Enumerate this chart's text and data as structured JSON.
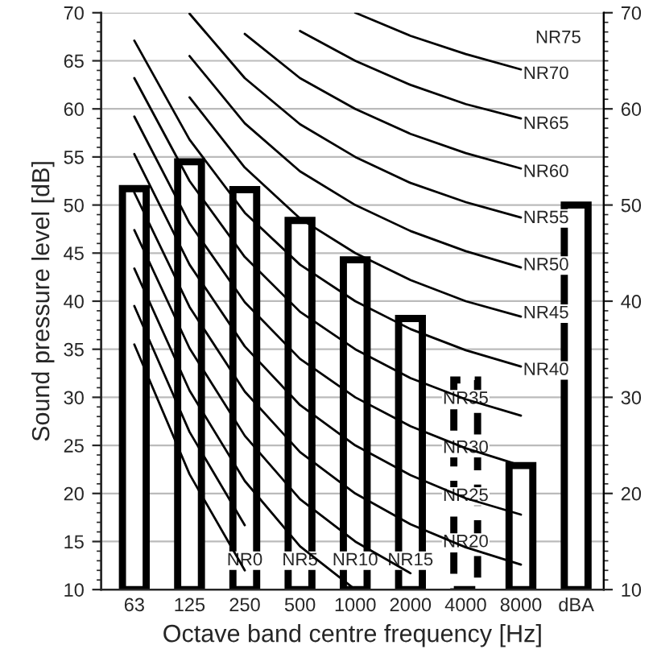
{
  "chart_data": {
    "type": "bar",
    "xlabel": "Octave band centre frequency [Hz]",
    "ylabel": "Sound pressure level [dB]",
    "categories": [
      "63",
      "125",
      "250",
      "500",
      "1000",
      "2000",
      "4000",
      "8000",
      "dBA"
    ],
    "series": [
      {
        "type": "bar",
        "color": "#ffffff",
        "line_style": "solid",
        "values": [
          51.7,
          54.5,
          51.6,
          48.4,
          44.3,
          38.2,
          null,
          22.9,
          50.0
        ]
      },
      {
        "type": "bar",
        "color": "#ffffff",
        "line_style": "dashed",
        "values": [
          null,
          null,
          null,
          null,
          null,
          null,
          31.8,
          null,
          null
        ]
      },
      {
        "type": "line",
        "color": "#000000",
        "values": [
          35.5,
          22.0,
          12.0,
          null,
          null,
          null,
          null,
          null,
          null
        ]
      },
      {
        "type": "line",
        "color": "#000000",
        "values": [
          39.5,
          26.4,
          16.7,
          null,
          null,
          null,
          null,
          null,
          null
        ]
      },
      {
        "type": "line",
        "color": "#000000",
        "values": [
          43.4,
          30.7,
          21.3,
          14.5,
          10.0,
          null,
          null,
          null,
          null
        ]
      },
      {
        "type": "line",
        "color": "#000000",
        "values": [
          47.4,
          35.1,
          26.0,
          19.4,
          15.0,
          11.7,
          null,
          null,
          null
        ]
      },
      {
        "type": "line",
        "color": "#000000",
        "values": [
          51.3,
          39.4,
          30.6,
          24.3,
          20.0,
          16.8,
          14.4,
          12.6,
          null
        ]
      },
      {
        "type": "line",
        "color": "#000000",
        "values": [
          55.3,
          43.8,
          35.3,
          29.2,
          25.0,
          21.9,
          19.5,
          17.8,
          null
        ]
      },
      {
        "type": "line",
        "color": "#000000",
        "values": [
          59.2,
          48.1,
          39.9,
          34.0,
          30.0,
          27.0,
          24.7,
          22.9,
          null
        ]
      },
      {
        "type": "line",
        "color": "#000000",
        "values": [
          63.2,
          52.5,
          44.6,
          38.9,
          35.0,
          32.0,
          29.8,
          28.1,
          null
        ]
      },
      {
        "type": "line",
        "color": "#000000",
        "values": [
          67.1,
          56.8,
          49.2,
          43.8,
          40.0,
          37.1,
          34.9,
          33.2,
          null
        ]
      },
      {
        "type": "line",
        "color": "#000000",
        "values": [
          null,
          61.2,
          53.9,
          48.6,
          45.0,
          42.2,
          40.0,
          38.4,
          null
        ]
      },
      {
        "type": "line",
        "color": "#000000",
        "values": [
          null,
          65.5,
          58.5,
          53.5,
          50.0,
          47.3,
          45.2,
          43.5,
          null
        ]
      },
      {
        "type": "line",
        "color": "#000000",
        "values": [
          null,
          69.9,
          63.2,
          58.4,
          55.0,
          52.3,
          50.3,
          48.7,
          null
        ]
      },
      {
        "type": "line",
        "color": "#000000",
        "values": [
          null,
          null,
          67.8,
          63.2,
          60.0,
          57.4,
          55.4,
          53.8,
          null
        ]
      },
      {
        "type": "line",
        "color": "#000000",
        "values": [
          null,
          null,
          null,
          68.1,
          65.0,
          62.5,
          60.5,
          59.0,
          null
        ]
      },
      {
        "type": "line",
        "color": "#000000",
        "values": [
          null,
          null,
          null,
          null,
          70.0,
          67.6,
          65.7,
          64.1,
          null
        ]
      }
    ],
    "annotations": [
      {
        "text": "NR0",
        "x": "250",
        "y": 13.0
      },
      {
        "text": "NR5",
        "x": "500",
        "y": 13.0
      },
      {
        "text": "NR10",
        "x": "1000",
        "y": 13.0
      },
      {
        "text": "NR15",
        "x": "2000",
        "y": 13.0
      },
      {
        "text": "NR20",
        "x": "4000",
        "y": 14.9
      },
      {
        "text": "NR25",
        "x": "4000",
        "y": 19.7
      },
      {
        "text": "NR30",
        "x": "4000",
        "y": 24.7
      },
      {
        "text": "NR35",
        "x": "4000",
        "y": 29.8
      },
      {
        "text": "NR40",
        "x": "8000",
        "y": 32.8
      },
      {
        "text": "NR45",
        "x": "8000",
        "y": 38.7
      },
      {
        "text": "NR50",
        "x": "8000",
        "y": 43.7
      },
      {
        "text": "NR55",
        "x": "8000",
        "y": 48.6
      },
      {
        "text": "NR60",
        "x": "8000",
        "y": 53.4
      },
      {
        "text": "NR65",
        "x": "8000",
        "y": 58.4
      },
      {
        "text": "NR70",
        "x": "8000",
        "y": 63.6
      },
      "NR75"
    ],
    "ylim": [
      10,
      70
    ],
    "yticks": [
      10,
      15,
      20,
      25,
      30,
      35,
      40,
      45,
      50,
      55,
      60,
      65,
      70
    ],
    "y2lim": [
      10,
      70
    ],
    "y2ticks": [
      10,
      20,
      30,
      40,
      50,
      60,
      70
    ],
    "grid": "y",
    "legend": false
  }
}
